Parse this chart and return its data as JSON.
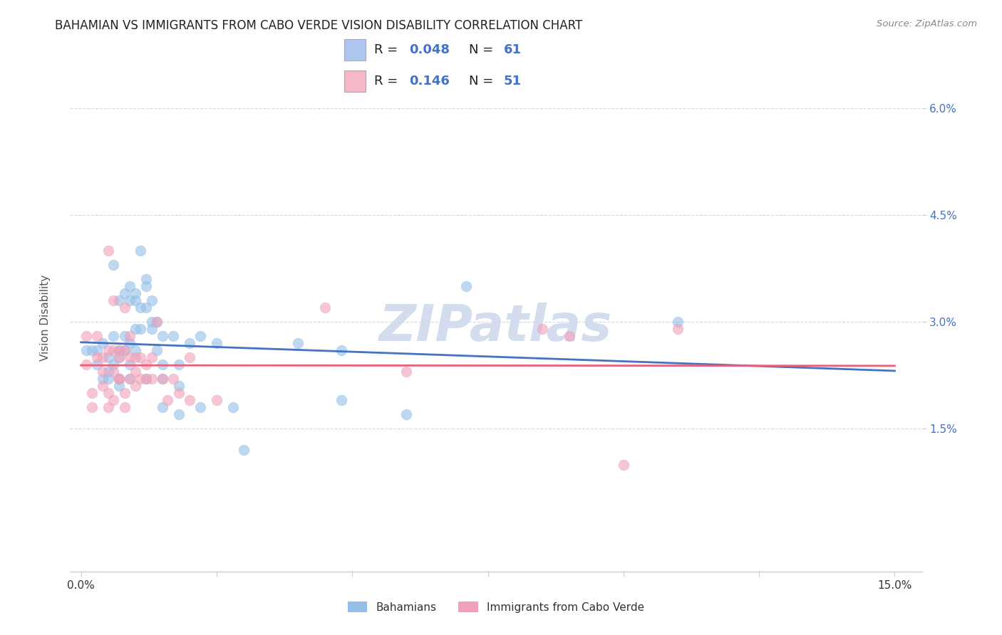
{
  "title": "BAHAMIAN VS IMMIGRANTS FROM CABO VERDE VISION DISABILITY CORRELATION CHART",
  "source": "Source: ZipAtlas.com",
  "ylabel": "Vision Disability",
  "ytick_values": [
    0.015,
    0.03,
    0.045,
    0.06
  ],
  "ytick_labels": [
    "1.5%",
    "3.0%",
    "4.5%",
    "6.0%"
  ],
  "xtick_values": [
    0.0,
    0.025,
    0.05,
    0.075,
    0.1,
    0.125,
    0.15
  ],
  "xlim": [
    -0.002,
    0.155
  ],
  "ylim": [
    -0.005,
    0.068
  ],
  "legend_label_bahamians": "Bahamians",
  "legend_label_caboverde": "Immigrants from Cabo Verde",
  "scatter_blue": [
    [
      0.001,
      0.026
    ],
    [
      0.002,
      0.026
    ],
    [
      0.003,
      0.026
    ],
    [
      0.003,
      0.024
    ],
    [
      0.004,
      0.027
    ],
    [
      0.004,
      0.022
    ],
    [
      0.005,
      0.025
    ],
    [
      0.005,
      0.022
    ],
    [
      0.005,
      0.023
    ],
    [
      0.006,
      0.038
    ],
    [
      0.006,
      0.028
    ],
    [
      0.006,
      0.024
    ],
    [
      0.007,
      0.033
    ],
    [
      0.007,
      0.026
    ],
    [
      0.007,
      0.025
    ],
    [
      0.007,
      0.022
    ],
    [
      0.007,
      0.021
    ],
    [
      0.008,
      0.034
    ],
    [
      0.008,
      0.028
    ],
    [
      0.008,
      0.026
    ],
    [
      0.009,
      0.035
    ],
    [
      0.009,
      0.033
    ],
    [
      0.009,
      0.027
    ],
    [
      0.009,
      0.024
    ],
    [
      0.009,
      0.022
    ],
    [
      0.01,
      0.034
    ],
    [
      0.01,
      0.033
    ],
    [
      0.01,
      0.029
    ],
    [
      0.01,
      0.026
    ],
    [
      0.011,
      0.04
    ],
    [
      0.011,
      0.032
    ],
    [
      0.011,
      0.029
    ],
    [
      0.012,
      0.036
    ],
    [
      0.012,
      0.035
    ],
    [
      0.012,
      0.032
    ],
    [
      0.012,
      0.022
    ],
    [
      0.013,
      0.033
    ],
    [
      0.013,
      0.03
    ],
    [
      0.013,
      0.029
    ],
    [
      0.014,
      0.03
    ],
    [
      0.014,
      0.026
    ],
    [
      0.015,
      0.028
    ],
    [
      0.015,
      0.024
    ],
    [
      0.015,
      0.022
    ],
    [
      0.015,
      0.018
    ],
    [
      0.017,
      0.028
    ],
    [
      0.018,
      0.024
    ],
    [
      0.018,
      0.021
    ],
    [
      0.018,
      0.017
    ],
    [
      0.02,
      0.027
    ],
    [
      0.022,
      0.028
    ],
    [
      0.022,
      0.018
    ],
    [
      0.025,
      0.027
    ],
    [
      0.028,
      0.018
    ],
    [
      0.03,
      0.012
    ],
    [
      0.04,
      0.027
    ],
    [
      0.048,
      0.026
    ],
    [
      0.048,
      0.019
    ],
    [
      0.06,
      0.017
    ],
    [
      0.071,
      0.035
    ],
    [
      0.11,
      0.03
    ]
  ],
  "scatter_pink": [
    [
      0.001,
      0.028
    ],
    [
      0.001,
      0.024
    ],
    [
      0.002,
      0.02
    ],
    [
      0.002,
      0.018
    ],
    [
      0.003,
      0.028
    ],
    [
      0.003,
      0.025
    ],
    [
      0.004,
      0.025
    ],
    [
      0.004,
      0.023
    ],
    [
      0.004,
      0.021
    ],
    [
      0.005,
      0.04
    ],
    [
      0.005,
      0.026
    ],
    [
      0.005,
      0.02
    ],
    [
      0.005,
      0.018
    ],
    [
      0.006,
      0.033
    ],
    [
      0.006,
      0.026
    ],
    [
      0.006,
      0.023
    ],
    [
      0.006,
      0.019
    ],
    [
      0.007,
      0.026
    ],
    [
      0.007,
      0.025
    ],
    [
      0.007,
      0.022
    ],
    [
      0.007,
      0.022
    ],
    [
      0.008,
      0.032
    ],
    [
      0.008,
      0.026
    ],
    [
      0.008,
      0.02
    ],
    [
      0.008,
      0.018
    ],
    [
      0.009,
      0.028
    ],
    [
      0.009,
      0.025
    ],
    [
      0.009,
      0.022
    ],
    [
      0.01,
      0.025
    ],
    [
      0.01,
      0.023
    ],
    [
      0.01,
      0.021
    ],
    [
      0.011,
      0.025
    ],
    [
      0.011,
      0.022
    ],
    [
      0.012,
      0.024
    ],
    [
      0.012,
      0.022
    ],
    [
      0.013,
      0.025
    ],
    [
      0.013,
      0.022
    ],
    [
      0.014,
      0.03
    ],
    [
      0.015,
      0.022
    ],
    [
      0.016,
      0.019
    ],
    [
      0.017,
      0.022
    ],
    [
      0.018,
      0.02
    ],
    [
      0.02,
      0.025
    ],
    [
      0.02,
      0.019
    ],
    [
      0.025,
      0.019
    ],
    [
      0.045,
      0.032
    ],
    [
      0.06,
      0.023
    ],
    [
      0.085,
      0.029
    ],
    [
      0.09,
      0.028
    ],
    [
      0.1,
      0.01
    ],
    [
      0.11,
      0.029
    ]
  ],
  "scatter_blue_color": "#94bfe8",
  "scatter_pink_color": "#f0a0b8",
  "trendline_blue_color": "#4472c4",
  "trendline_pink_color": "#e8607a",
  "legend_blue_fill": "#aec6f0",
  "legend_pink_fill": "#f5b8c8",
  "grid_color": "#d8d8d8",
  "background_color": "#ffffff",
  "title_color": "#222222",
  "title_fontsize": 12,
  "axis_tick_color": "#4472c4",
  "ylabel_color": "#555555",
  "watermark": "ZIPatlas",
  "watermark_color": "#cdd8ec",
  "watermark_fontsize": 52
}
